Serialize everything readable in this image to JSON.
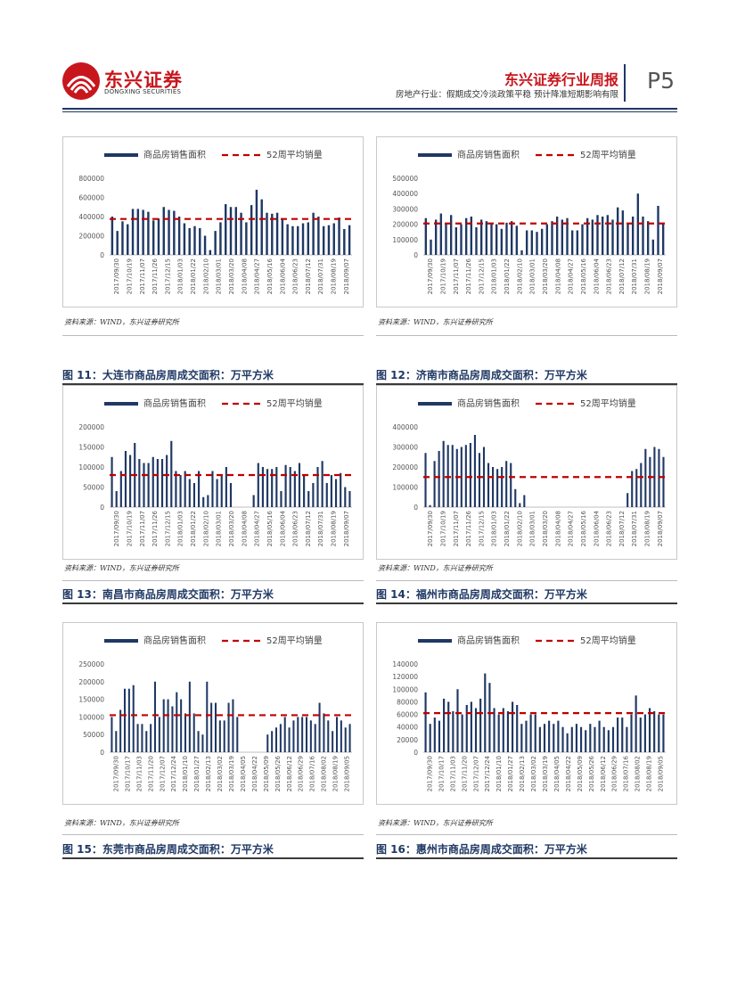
{
  "header": {
    "logo_cn": "东兴证券",
    "logo_en": "DONGXING SECURITIES",
    "title": "东兴证券行业周报",
    "subtitle": "房地产行业：假期成交冷淡政策平稳 预计降准短期影响有限",
    "page": "P5"
  },
  "colors": {
    "bar": "#1f3864",
    "avg": "#c00000",
    "accent": "#c8161d"
  },
  "panels": [
    {
      "source": "资料来源：WIND，东兴证券研究所",
      "caption": "",
      "chart_data": {
        "type": "bar",
        "legend": [
          "商品房销售面积",
          "52周平均销量"
        ],
        "ylim": [
          0,
          800000
        ],
        "yticks": [
          "0",
          "200000",
          "400000",
          "600000",
          "800000"
        ],
        "xticks": [
          "2017/09/30",
          "2017/10/19",
          "2017/11/07",
          "2017/11/26",
          "2017/12/15",
          "2018/01/03",
          "2018/01/22",
          "2018/02/10",
          "2018/03/01",
          "2018/03/20",
          "2018/04/08",
          "2018/04/27",
          "2018/05/16",
          "2018/06/04",
          "2018/06/23",
          "2018/07/12",
          "2018/07/31",
          "2018/08/19",
          "2018/09/07"
        ],
        "values": [
          400000,
          250000,
          350000,
          320000,
          480000,
          480000,
          470000,
          450000,
          360000,
          380000,
          500000,
          470000,
          460000,
          400000,
          330000,
          280000,
          300000,
          280000,
          200000,
          50000,
          250000,
          340000,
          530000,
          500000,
          500000,
          440000,
          340000,
          520000,
          680000,
          580000,
          440000,
          430000,
          440000,
          380000,
          320000,
          300000,
          300000,
          330000,
          340000,
          440000,
          400000,
          300000,
          310000,
          330000,
          390000,
          270000,
          310000
        ],
        "average": 375000
      }
    },
    {
      "source": "资料来源：WIND，东兴证券研究所",
      "caption": "",
      "chart_data": {
        "type": "bar",
        "legend": [
          "商品房销售面积",
          "52周平均销量"
        ],
        "ylim": [
          0,
          500000
        ],
        "yticks": [
          "0",
          "100000",
          "200000",
          "300000",
          "400000",
          "500000"
        ],
        "xticks": [
          "2017/09/30",
          "2017/10/19",
          "2017/11/07",
          "2017/11/26",
          "2017/12/15",
          "2018/01/03",
          "2018/01/22",
          "2018/02/10",
          "2018/03/01",
          "2018/03/20",
          "2018/04/08",
          "2018/04/27",
          "2018/05/16",
          "2018/06/04",
          "2018/06/23",
          "2018/07/12",
          "2018/07/31",
          "2018/08/19",
          "2018/09/07"
        ],
        "values": [
          240000,
          100000,
          230000,
          270000,
          200000,
          260000,
          180000,
          200000,
          240000,
          250000,
          180000,
          230000,
          220000,
          200000,
          200000,
          170000,
          210000,
          220000,
          190000,
          30000,
          160000,
          160000,
          150000,
          170000,
          200000,
          220000,
          250000,
          230000,
          240000,
          160000,
          160000,
          200000,
          240000,
          230000,
          260000,
          250000,
          260000,
          230000,
          310000,
          290000,
          200000,
          250000,
          400000,
          250000,
          220000,
          100000,
          320000,
          210000
        ],
        "average": 205000
      }
    },
    {
      "source": "资料来源：WIND，东兴证券研究所",
      "caption": "图 11：大连市商品房周成交面积：万平方米",
      "chart_data": {
        "type": "bar",
        "legend": [
          "商品房销售面积",
          "52周平均销量"
        ],
        "ylim": [
          0,
          200000
        ],
        "yticks": [
          "0",
          "50000",
          "100000",
          "150000",
          "200000"
        ],
        "xticks": [
          "2017/09/30",
          "2017/10/19",
          "2017/11/07",
          "2017/11/26",
          "2017/12/15",
          "2018/01/03",
          "2018/01/22",
          "2018/02/10",
          "2018/03/01",
          "2018/03/20",
          "2018/04/08",
          "2018/04/27",
          "2018/05/16",
          "2018/06/04",
          "2018/06/23",
          "2018/07/12",
          "2018/07/31",
          "2018/08/19",
          "2018/09/07"
        ],
        "values": [
          125000,
          40000,
          90000,
          140000,
          130000,
          160000,
          120000,
          110000,
          110000,
          125000,
          120000,
          120000,
          130000,
          165000,
          90000,
          80000,
          90000,
          70000,
          60000,
          90000,
          25000,
          30000,
          90000,
          70000,
          80000,
          100000,
          60000,
          0,
          0,
          0,
          0,
          30000,
          110000,
          100000,
          95000,
          95000,
          100000,
          40000,
          105000,
          100000,
          90000,
          110000,
          80000,
          40000,
          60000,
          100000,
          115000,
          60000,
          80000,
          70000,
          85000,
          50000,
          40000
        ],
        "average": 80000
      }
    },
    {
      "source": "资料来源：WIND，东兴证券研究所",
      "caption": "图 12：济南市商品房周成交面积：万平方米",
      "chart_data": {
        "type": "bar",
        "legend": [
          "商品房销售面积",
          "52周平均销量"
        ],
        "ylim": [
          0,
          400000
        ],
        "yticks": [
          "0",
          "100000",
          "200000",
          "300000",
          "400000"
        ],
        "xticks": [
          "2017/09/30",
          "2017/10/19",
          "2017/11/07",
          "2017/11/26",
          "2017/12/15",
          "2018/01/03",
          "2018/01/22",
          "2018/02/10",
          "2018/03/01",
          "2018/03/20",
          "2018/04/08",
          "2018/04/27",
          "2018/05/16",
          "2018/06/04",
          "2018/06/23",
          "2018/07/12",
          "2018/07/31",
          "2018/08/19",
          "2018/09/07"
        ],
        "values": [
          270000,
          10000,
          230000,
          280000,
          330000,
          310000,
          310000,
          290000,
          300000,
          310000,
          320000,
          360000,
          270000,
          300000,
          220000,
          200000,
          190000,
          200000,
          230000,
          220000,
          90000,
          20000,
          60000,
          0,
          0,
          0,
          0,
          0,
          0,
          0,
          0,
          0,
          0,
          0,
          0,
          0,
          0,
          0,
          0,
          0,
          0,
          0,
          0,
          0,
          0,
          70000,
          180000,
          190000,
          220000,
          290000,
          250000,
          300000,
          290000,
          250000
        ],
        "average": 150000
      }
    },
    {
      "source": "资料来源：WIND，东兴证券研究所",
      "caption": "图 13：南昌市商品房周成交面积：万平方米",
      "chart_data": {
        "type": "bar",
        "legend": [
          "商品房销售面积",
          "52周平均销量"
        ],
        "ylim": [
          0,
          250000
        ],
        "yticks": [
          "0",
          "50000",
          "100000",
          "150000",
          "200000",
          "250000"
        ],
        "xticks": [
          "2017/09/30",
          "2017/10/17",
          "2017/11/03",
          "2017/11/20",
          "2017/12/07",
          "2017/12/24",
          "2018/01/10",
          "2018/01/27",
          "2018/02/13",
          "2018/03/02",
          "2018/03/19",
          "2018/04/05",
          "2018/04/22",
          "2018/05/09",
          "2018/05/26",
          "2018/06/12",
          "2018/06/29",
          "2018/07/16",
          "2018/08/02",
          "2018/08/19",
          "2018/09/05"
        ],
        "values": [
          100000,
          60000,
          120000,
          180000,
          180000,
          190000,
          80000,
          80000,
          60000,
          80000,
          200000,
          100000,
          150000,
          150000,
          130000,
          170000,
          150000,
          110000,
          200000,
          110000,
          60000,
          50000,
          200000,
          140000,
          140000,
          90000,
          90000,
          140000,
          150000,
          100000,
          0,
          0,
          0,
          0,
          0,
          0,
          50000,
          60000,
          70000,
          80000,
          100000,
          70000,
          90000,
          100000,
          100000,
          100000,
          90000,
          80000,
          140000,
          110000,
          90000,
          60000,
          100000,
          90000,
          70000,
          80000
        ],
        "average": 105000
      }
    },
    {
      "source": "资料来源：WIND，东兴证券研究所",
      "caption": "图 14：福州市商品房周成交面积：万平方米",
      "chart_data": {
        "type": "bar",
        "legend": [
          "商品房销售面积",
          "52周平均销量"
        ],
        "ylim": [
          0,
          140000
        ],
        "yticks": [
          "0",
          "20000",
          "40000",
          "60000",
          "80000",
          "100000",
          "120000",
          "140000"
        ],
        "xticks": [
          "2017/09/30",
          "2017/10/17",
          "2017/11/03",
          "2017/11/20",
          "2017/12/07",
          "2017/12/24",
          "2018/01/10",
          "2018/01/27",
          "2018/02/13",
          "2018/03/02",
          "2018/03/19",
          "2018/04/05",
          "2018/04/22",
          "2018/05/09",
          "2018/05/26",
          "2018/06/12",
          "2018/06/29",
          "2018/07/16",
          "2018/08/02",
          "2018/08/19",
          "2018/09/05"
        ],
        "values": [
          95000,
          45000,
          55000,
          50000,
          85000,
          80000,
          65000,
          100000,
          60000,
          75000,
          80000,
          70000,
          85000,
          125000,
          110000,
          70000,
          60000,
          70000,
          65000,
          80000,
          75000,
          45000,
          50000,
          60000,
          60000,
          40000,
          45000,
          50000,
          45000,
          50000,
          40000,
          30000,
          40000,
          45000,
          40000,
          35000,
          45000,
          40000,
          50000,
          40000,
          35000,
          40000,
          55000,
          55000,
          40000,
          60000,
          90000,
          55000,
          60000,
          70000,
          65000,
          60000,
          60000
        ],
        "average": 62000
      }
    },
    {
      "source": "资料来源：WIND，东兴证券研究所",
      "caption": "图 15：东莞市商品房周成交面积：万平方米",
      "chart_data": null
    },
    {
      "source": "资料来源：WIND，东兴证券研究所",
      "caption": "图 16：惠州市商品房周成交面积：万平方米",
      "chart_data": null
    }
  ]
}
